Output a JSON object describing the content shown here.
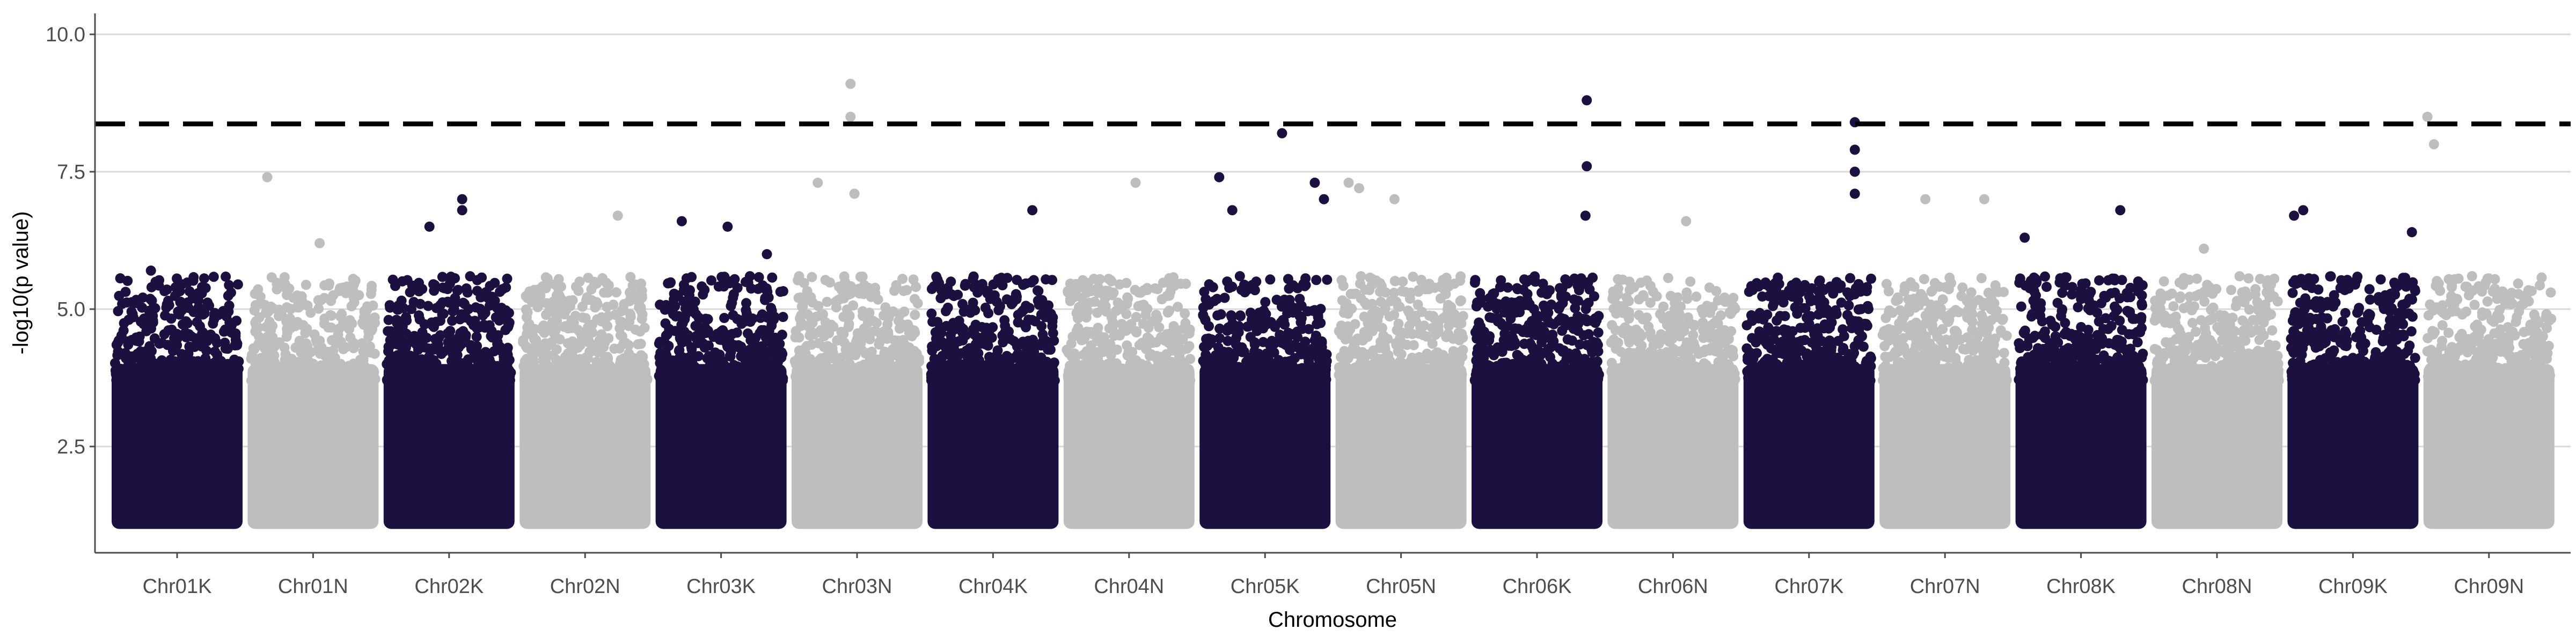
{
  "chart_data": {
    "type": "scatter",
    "title": "",
    "xlabel": "Chromosome",
    "ylabel": "-log10(p value)",
    "ylim": [
      1,
      10.4
    ],
    "yticks": [
      "2.5",
      "5.0",
      "7.5",
      "10.0"
    ],
    "grid": "horizontal major gridlines",
    "legend": "none",
    "threshold": 8.37,
    "colors": {
      "odd": "#1c1040",
      "even": "#bebebe",
      "threshold": "#000000",
      "grid": "#d9d9d9"
    },
    "categories": [
      "Chr01K",
      "Chr01N",
      "Chr02K",
      "Chr02N",
      "Chr03K",
      "Chr03N",
      "Chr04K",
      "Chr04N",
      "Chr05K",
      "Chr05N",
      "Chr06K",
      "Chr06N",
      "Chr07K",
      "Chr07N",
      "Chr08K",
      "Chr08N",
      "Chr09K",
      "Chr09N"
    ],
    "peak_values": [
      5.7,
      7.4,
      7.0,
      6.7,
      6.6,
      9.1,
      6.8,
      7.3,
      8.2,
      7.3,
      8.8,
      6.6,
      8.4,
      7.0,
      6.8,
      6.1,
      6.8,
      8.5
    ],
    "outliers": [
      {
        "chrom": "Chr01K",
        "pos": 0.3,
        "y": 5.7
      },
      {
        "chrom": "Chr01N",
        "pos": 0.15,
        "y": 7.4
      },
      {
        "chrom": "Chr01N",
        "pos": 0.55,
        "y": 6.2
      },
      {
        "chrom": "Chr02K",
        "pos": 0.6,
        "y": 7.0
      },
      {
        "chrom": "Chr02K",
        "pos": 0.6,
        "y": 6.8
      },
      {
        "chrom": "Chr02K",
        "pos": 0.35,
        "y": 6.5
      },
      {
        "chrom": "Chr02N",
        "pos": 0.75,
        "y": 6.7
      },
      {
        "chrom": "Chr03K",
        "pos": 0.2,
        "y": 6.6
      },
      {
        "chrom": "Chr03K",
        "pos": 0.55,
        "y": 6.5
      },
      {
        "chrom": "Chr03K",
        "pos": 0.85,
        "y": 6.0
      },
      {
        "chrom": "Chr03N",
        "pos": 0.45,
        "y": 9.1
      },
      {
        "chrom": "Chr03N",
        "pos": 0.45,
        "y": 8.5
      },
      {
        "chrom": "Chr03N",
        "pos": 0.2,
        "y": 7.3
      },
      {
        "chrom": "Chr03N",
        "pos": 0.48,
        "y": 7.1
      },
      {
        "chrom": "Chr04K",
        "pos": 0.8,
        "y": 6.8
      },
      {
        "chrom": "Chr04N",
        "pos": 0.55,
        "y": 7.3
      },
      {
        "chrom": "Chr05K",
        "pos": 0.15,
        "y": 7.4
      },
      {
        "chrom": "Chr05K",
        "pos": 0.25,
        "y": 6.8
      },
      {
        "chrom": "Chr05K",
        "pos": 0.63,
        "y": 8.2
      },
      {
        "chrom": "Chr05K",
        "pos": 0.88,
        "y": 7.3
      },
      {
        "chrom": "Chr05K",
        "pos": 0.95,
        "y": 7.0
      },
      {
        "chrom": "Chr05N",
        "pos": 0.1,
        "y": 7.3
      },
      {
        "chrom": "Chr05N",
        "pos": 0.18,
        "y": 7.2
      },
      {
        "chrom": "Chr05N",
        "pos": 0.45,
        "y": 7.0
      },
      {
        "chrom": "Chr06K",
        "pos": 0.88,
        "y": 8.8
      },
      {
        "chrom": "Chr06K",
        "pos": 0.88,
        "y": 7.6
      },
      {
        "chrom": "Chr06K",
        "pos": 0.87,
        "y": 6.7
      },
      {
        "chrom": "Chr06N",
        "pos": 0.6,
        "y": 6.6
      },
      {
        "chrom": "Chr07K",
        "pos": 0.85,
        "y": 8.4
      },
      {
        "chrom": "Chr07K",
        "pos": 0.85,
        "y": 7.9
      },
      {
        "chrom": "Chr07K",
        "pos": 0.85,
        "y": 7.5
      },
      {
        "chrom": "Chr07K",
        "pos": 0.85,
        "y": 7.1
      },
      {
        "chrom": "Chr07N",
        "pos": 0.35,
        "y": 7.0
      },
      {
        "chrom": "Chr07N",
        "pos": 0.8,
        "y": 7.0
      },
      {
        "chrom": "Chr08K",
        "pos": 0.8,
        "y": 6.8
      },
      {
        "chrom": "Chr08K",
        "pos": 0.07,
        "y": 6.3
      },
      {
        "chrom": "Chr08N",
        "pos": 0.4,
        "y": 6.1
      },
      {
        "chrom": "Chr09K",
        "pos": 0.12,
        "y": 6.8
      },
      {
        "chrom": "Chr09K",
        "pos": 0.05,
        "y": 6.7
      },
      {
        "chrom": "Chr09K",
        "pos": 0.95,
        "y": 6.4
      },
      {
        "chrom": "Chr09N",
        "pos": 0.03,
        "y": 8.5
      },
      {
        "chrom": "Chr09N",
        "pos": 0.08,
        "y": 8.0
      }
    ]
  }
}
